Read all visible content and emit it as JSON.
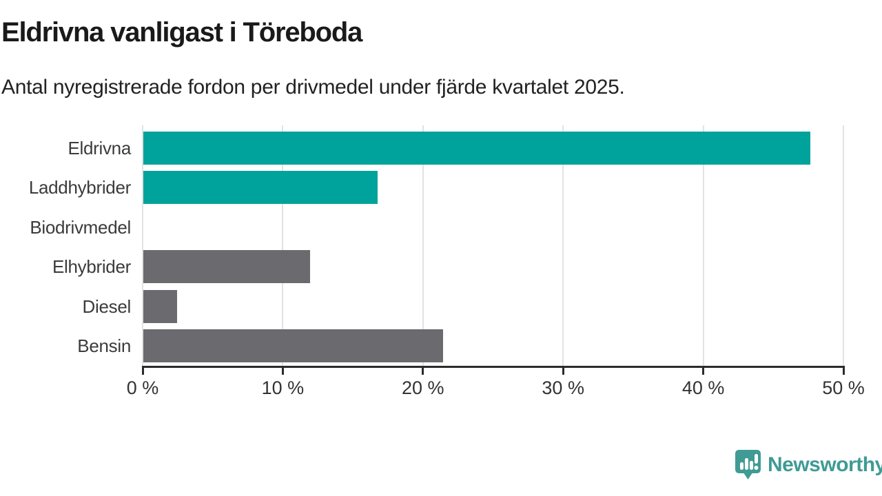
{
  "header": {
    "title": "Eldrivna vanligast i Töreboda",
    "subtitle": "Antal nyregistrerade fordon per drivmedel under fjärde kvartalet 2025."
  },
  "chart_data": {
    "type": "bar",
    "orientation": "horizontal",
    "title": "Eldrivna vanligast i Töreboda",
    "subtitle": "Antal nyregistrerade fordon per drivmedel under fjärde kvartalet 2025.",
    "categories": [
      "Eldrivna",
      "Laddhybrider",
      "Biodrivmedel",
      "Elhybrider",
      "Diesel",
      "Bensin"
    ],
    "values": [
      47.6,
      16.7,
      0,
      11.9,
      2.4,
      21.4
    ],
    "unit": "%",
    "bar_colors": [
      "#00a39b",
      "#00a39b",
      "#6a6a6f",
      "#6a6a6f",
      "#6a6a6f",
      "#6a6a6f"
    ],
    "xlabel": "",
    "ylabel": "",
    "xlim": [
      0,
      50
    ],
    "xticks": [
      0,
      10,
      20,
      30,
      40,
      50
    ],
    "xtick_labels": [
      "0 %",
      "10 %",
      "20 %",
      "30 %",
      "40 %",
      "50 %"
    ],
    "grid": "vertical gridlines on",
    "legend": "none"
  },
  "footer": {
    "brand": "Newsworthy"
  },
  "colors": {
    "highlight_teal": "#00a39b",
    "neutral_gray": "#6a6a6f",
    "gridline": "#e2e2e2",
    "axis": "#2b2b2b",
    "logo_teal": "#3f9b94"
  }
}
